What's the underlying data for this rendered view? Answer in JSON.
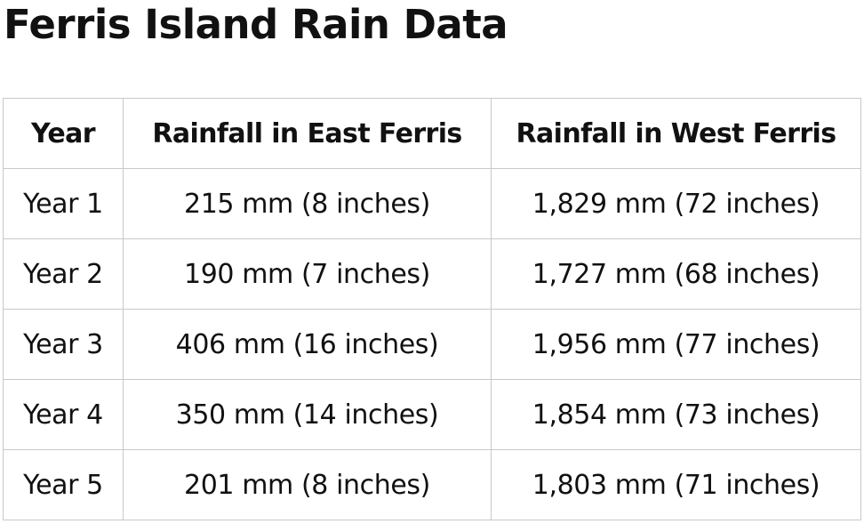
{
  "title": "Ferris Island Rain Data",
  "table": {
    "headers": [
      "Year",
      "Rainfall in East Ferris",
      "Rainfall in West Ferris"
    ],
    "rows": [
      [
        "Year 1",
        "215 mm (8 inches)",
        "1,829 mm (72 inches)"
      ],
      [
        "Year 2",
        "190 mm (7 inches)",
        "1,727 mm (68 inches)"
      ],
      [
        "Year 3",
        "406 mm (16 inches)",
        "1,956 mm (77 inches)"
      ],
      [
        "Year 4",
        "350 mm (14 inches)",
        "1,854 mm (73 inches)"
      ],
      [
        "Year 5",
        "201 mm (8 inches)",
        "1,803 mm (71 inches)"
      ]
    ]
  },
  "colors": {
    "text": "#111111",
    "border": "#c9c9c9",
    "background": "#ffffff"
  }
}
